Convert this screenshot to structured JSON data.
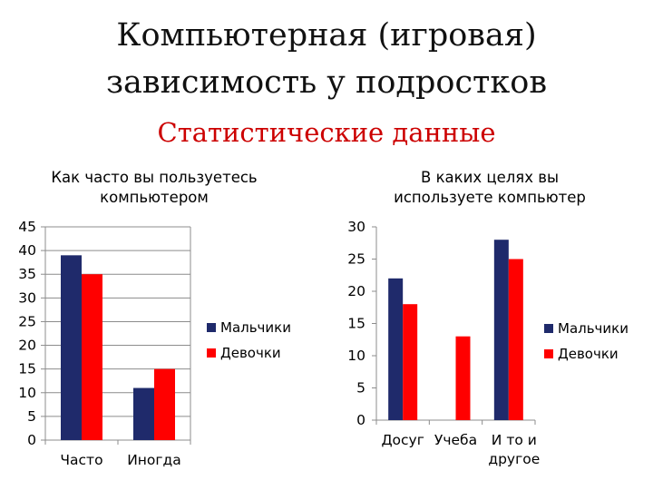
{
  "header": {
    "title_line1": "Компьютерная (игровая)",
    "title_line2": "зависимость у подростков",
    "subtitle": "Статистические данные"
  },
  "colors": {
    "series1": "#1f2a6b",
    "series2": "#ff0000",
    "subtitle": "#cc0000"
  },
  "chart_data": [
    {
      "type": "bar",
      "title": "Как часто вы пользуетесь компьютером",
      "title_lines": [
        "Как часто вы пользуетесь",
        "компьютером"
      ],
      "categories": [
        "Часто",
        "Иногда"
      ],
      "series": [
        {
          "name": "Мальчики",
          "values": [
            39,
            11
          ]
        },
        {
          "name": "Девочки",
          "values": [
            35,
            15
          ]
        }
      ],
      "ylim": [
        0,
        45
      ],
      "yticks": [
        0,
        5,
        10,
        15,
        20,
        25,
        30,
        35,
        40,
        45
      ],
      "grid": true,
      "legend": "right"
    },
    {
      "type": "bar",
      "title": "В каких целях вы используете компьютер",
      "title_lines": [
        "В каких целях вы",
        "используете компьютер"
      ],
      "categories": [
        "Досуг",
        "Учеба",
        "И то и другое"
      ],
      "series": [
        {
          "name": "Мальчики",
          "values": [
            22,
            0,
            28
          ]
        },
        {
          "name": "Девочки",
          "values": [
            18,
            13,
            25
          ]
        }
      ],
      "ylim": [
        0,
        30
      ],
      "yticks": [
        0,
        5,
        10,
        15,
        20,
        25,
        30
      ],
      "grid": false,
      "legend": "right"
    }
  ]
}
